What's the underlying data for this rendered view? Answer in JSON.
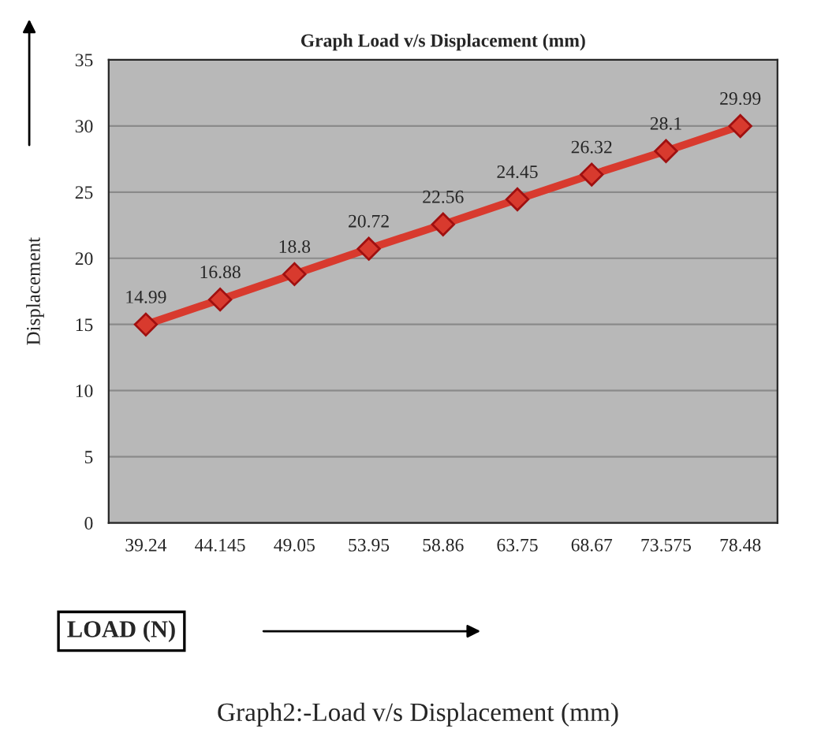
{
  "chart_data": {
    "type": "line",
    "title": "Graph Load v/s Displacement (mm)",
    "xlabel": "LOAD (N)",
    "ylabel": "Displacement",
    "annotations": [
      "Graph2:-Load v/s Displacement (mm)"
    ],
    "categories": [
      "39.24",
      "44.145",
      "49.05",
      "53.95",
      "58.86",
      "63.75",
      "68.67",
      "73.575",
      "78.48"
    ],
    "series": [
      {
        "color": "#d83a2e",
        "values": [
          14.99,
          16.88,
          18.8,
          20.72,
          22.56,
          24.45,
          26.32,
          28.1,
          29.99
        ]
      }
    ],
    "ylim": [
      0,
      35
    ],
    "yticks": [
      0,
      5,
      10,
      15,
      20,
      25,
      30,
      35
    ],
    "grid": "y",
    "marker": "diamond",
    "line_style": "solid",
    "data_labels": true,
    "legend": false
  }
}
